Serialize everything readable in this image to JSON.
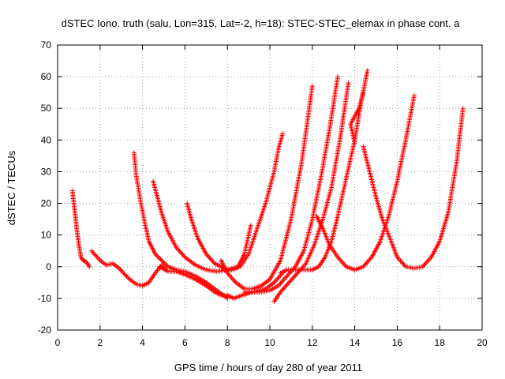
{
  "chart_data": {
    "type": "scatter",
    "title": "dSTEC Iono. truth (salu, Lon=315, Lat=-2, h=18): STEC-STEC_elemax in phase cont. a",
    "xlabel": "GPS time / hours of day 280 of year 2011",
    "ylabel": "dSTEC  / TECUs",
    "xlim": [
      0,
      20
    ],
    "ylim": [
      -20,
      70
    ],
    "x_ticks": [
      "0",
      "2",
      "4",
      "6",
      "8",
      "10",
      "12",
      "14",
      "16",
      "18",
      "20"
    ],
    "y_ticks": [
      "-20",
      "-10",
      "0",
      "10",
      "20",
      "30",
      "40",
      "50",
      "60",
      "70"
    ],
    "grid": true,
    "marker": "+",
    "color": "#ff0000",
    "series": [
      {
        "x": [
          0.7,
          0.8,
          0.9,
          1.0,
          1.1,
          1.2,
          1.35,
          1.5
        ],
        "y": [
          24,
          18,
          12,
          7,
          3,
          2,
          1.5,
          0
        ]
      },
      {
        "x": [
          1.6,
          1.8,
          2.0,
          2.3,
          2.6,
          2.9,
          3.1,
          3.4,
          3.7,
          4.0,
          4.3,
          4.6,
          4.9,
          5.1
        ],
        "y": [
          5,
          3.5,
          2,
          0.5,
          1,
          -0.5,
          -2,
          -4,
          -5.5,
          -6,
          -5,
          -2,
          0.5,
          -1
        ]
      },
      {
        "x": [
          3.6,
          3.7,
          3.9,
          4.1,
          4.3,
          4.6,
          4.9,
          5.2,
          5.6,
          6.0,
          6.5,
          7.0,
          7.4,
          7.8,
          8.0
        ],
        "y": [
          36,
          29,
          21,
          14,
          8,
          4,
          2,
          0,
          -1,
          -1.5,
          -3,
          -5,
          -7,
          -9,
          -10
        ]
      },
      {
        "x": [
          4.5,
          4.7,
          4.9,
          5.2,
          5.6,
          6.0,
          6.5,
          7.0,
          7.5,
          8.0,
          8.5,
          8.8,
          9.1
        ],
        "y": [
          27,
          22,
          17,
          11,
          6,
          3,
          0.5,
          -1,
          -1.5,
          -1,
          0,
          4,
          13
        ]
      },
      {
        "x": [
          4.8,
          5.2,
          5.6,
          6.0,
          6.5,
          7.0,
          7.4,
          7.7,
          8.0,
          8.3,
          8.7,
          9.2,
          9.8,
          10.2,
          10.6
        ],
        "y": [
          0,
          -1.5,
          -1.5,
          -2.5,
          -4,
          -6,
          -8,
          -9,
          -9,
          -10,
          -9,
          -8,
          -7,
          -5,
          -2
        ]
      },
      {
        "x": [
          6.1,
          6.3,
          6.6,
          7.0,
          7.4,
          7.7,
          7.9,
          8.2,
          8.6,
          9.0,
          9.4,
          9.8,
          10.2,
          10.4,
          10.6
        ],
        "y": [
          20,
          15,
          9,
          4,
          1,
          0,
          -1,
          -1,
          0,
          4,
          12,
          20,
          30,
          37,
          42
        ]
      },
      {
        "x": [
          7.7,
          8.0,
          8.4,
          8.8,
          9.2,
          9.6,
          10.0,
          10.5,
          11.0,
          11.5,
          12.0
        ],
        "y": [
          2,
          -2,
          -5,
          -7,
          -7,
          -6,
          -4,
          2,
          15,
          33,
          57
        ]
      },
      {
        "x": [
          8.8,
          9.2,
          9.6,
          10.0,
          10.4,
          10.8,
          11.2,
          11.6,
          12.0,
          12.4,
          12.8,
          13.2
        ],
        "y": [
          -8,
          -8,
          -8,
          -7.5,
          -6,
          -3,
          0,
          5,
          15,
          28,
          43,
          60
        ]
      },
      {
        "x": [
          10.2,
          10.5,
          10.9,
          11.3,
          11.7,
          12.1,
          12.5,
          12.9,
          13.3,
          13.7
        ],
        "y": [
          -11,
          -8,
          -5,
          -2,
          1,
          7,
          15,
          25,
          40,
          58
        ]
      },
      {
        "x": [
          10.5,
          10.8,
          11.2,
          11.6,
          12.0,
          12.3,
          12.6,
          12.9,
          13.2,
          13.6,
          14.0,
          14.3,
          14.6
        ],
        "y": [
          -2,
          -1,
          -1,
          -1,
          -1,
          0,
          3,
          8,
          16,
          28,
          40,
          52,
          62
        ]
      },
      {
        "x": [
          12.2,
          12.5,
          12.8,
          13.2,
          13.6,
          14.0,
          14.4,
          14.8,
          15.2,
          15.6,
          16.0,
          16.4,
          16.8
        ],
        "y": [
          16,
          12,
          7,
          3,
          0,
          -1,
          0,
          3,
          8,
          16,
          27,
          40,
          54
        ]
      },
      {
        "x": [
          14.4,
          14.7,
          15.0,
          15.3,
          15.6,
          16.0,
          16.4,
          16.8,
          17.2,
          17.6,
          18.0,
          18.4,
          18.8,
          19.1
        ],
        "y": [
          38,
          30,
          22,
          15,
          10,
          3,
          0,
          -0.5,
          0,
          3,
          8,
          17,
          33,
          50
        ]
      },
      {
        "x": [
          14.0,
          13.8,
          14.2,
          14.4
        ],
        "y": [
          39,
          45,
          50,
          55
        ]
      }
    ]
  }
}
